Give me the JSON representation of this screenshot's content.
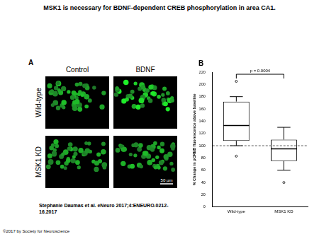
{
  "title": "MSK1 is necessary for BDNF-dependent CREB phosphorylation in area CA1.",
  "panel_a": {
    "label": "A",
    "columns": [
      "Control",
      "BDNF"
    ],
    "rows": [
      "Wild-type",
      "MSK1 KD"
    ],
    "scale_bar": "50 µm"
  },
  "chart_data": {
    "type": "box",
    "label": "B",
    "categories": [
      "Wild-type",
      "MSK1 KD"
    ],
    "boxes": [
      {
        "min": 100,
        "q1": 108,
        "median": 133,
        "q3": 172,
        "max": 180
      },
      {
        "min": 60,
        "q1": 75,
        "median": 95,
        "q3": 110,
        "max": 130
      }
    ],
    "outliers": [
      [
        205,
        83
      ],
      [
        40
      ]
    ],
    "ylabel": "% Change in pCREB fluorescence above baseline",
    "ylim": [
      0,
      220
    ],
    "yticks": [
      0,
      20,
      40,
      60,
      80,
      100,
      120,
      140,
      160,
      180,
      200,
      220
    ],
    "baseline": 100,
    "line_style": "dashed",
    "annotations": [
      {
        "text": "p = 0.0004"
      }
    ],
    "grid": false,
    "color": "#ffffff"
  },
  "citation": "Stephanie Daumas et al. eNeuro 2017;4:ENEURO.0212-16.2017",
  "copyright": "©2017 by Society for Neuroscience"
}
